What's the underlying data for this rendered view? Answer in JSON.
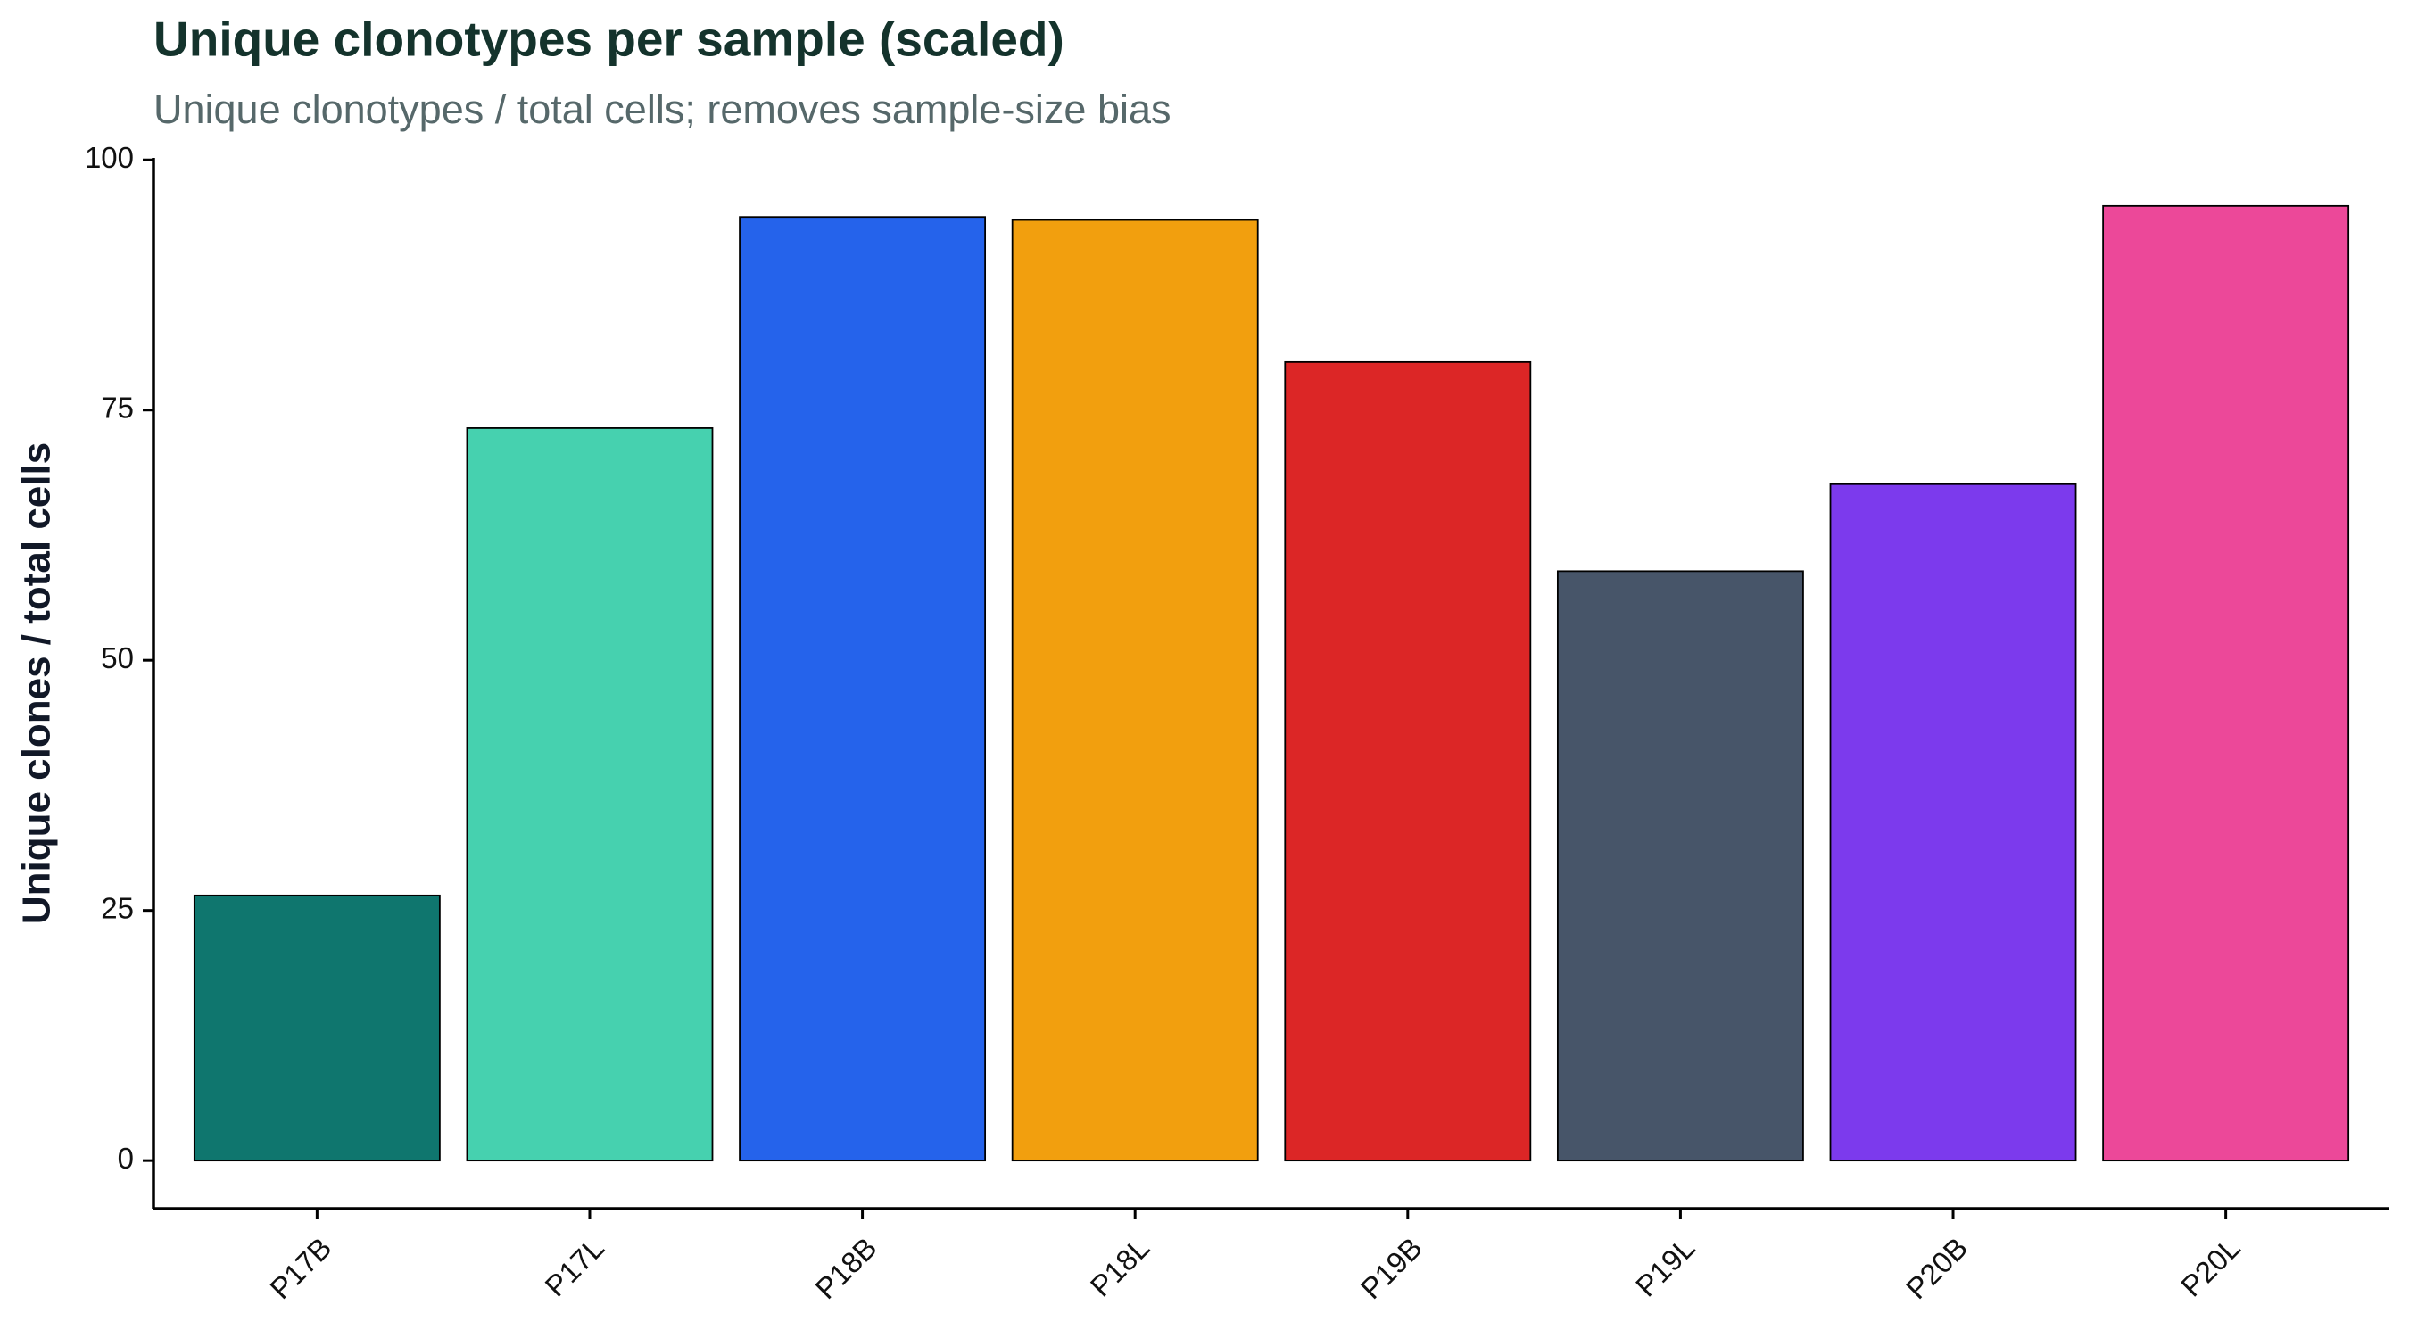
{
  "chart_data": {
    "type": "bar",
    "title": "Unique clonotypes per sample (scaled)",
    "subtitle": "Unique clonotypes / total cells; removes sample-size bias",
    "y_label": "Unique clones / total cells",
    "categories": [
      "P17B",
      "P17L",
      "P18B",
      "P18L",
      "P19B",
      "P19L",
      "P20B",
      "P20L"
    ],
    "values": [
      26.5,
      73.2,
      94.3,
      94.0,
      79.8,
      58.9,
      67.6,
      95.4
    ],
    "colors": [
      "#0f766e",
      "#46d1af",
      "#2563eb",
      "#f29f0e",
      "#dc2626",
      "#475569",
      "#7c3aed",
      "#ec4899"
    ],
    "ylim": [
      -4.8,
      100.2
    ],
    "yticks": [
      0,
      25,
      50,
      75,
      100
    ],
    "grid": false
  }
}
